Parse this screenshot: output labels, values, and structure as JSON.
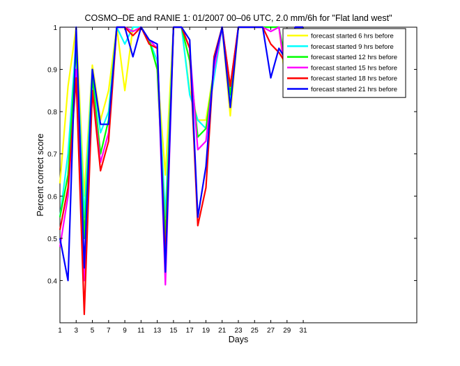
{
  "chart_data": {
    "type": "line",
    "title": "COSMO–DE and RANIE 1: 01/2007 00–06 UTC, 2.0 mm/6h for \"Flat land west\"",
    "xlabel": "Days",
    "ylabel": "Percent correct score",
    "xlim": [
      1,
      45
    ],
    "ylim": [
      0.3,
      1.0
    ],
    "xticks": [
      1,
      3,
      5,
      7,
      9,
      11,
      13,
      15,
      17,
      19,
      21,
      23,
      25,
      27,
      29,
      31
    ],
    "xtick_labels": [
      "1",
      "3",
      "5",
      "7",
      "9",
      "11",
      "13",
      "15",
      "17",
      "19",
      "21",
      "23",
      "25",
      "27",
      "29",
      "31"
    ],
    "yticks": [
      0.4,
      0.5,
      0.6,
      0.7,
      0.8,
      0.9,
      1.0
    ],
    "ytick_labels": [
      "0.4",
      "0.5",
      "0.6",
      "0.7",
      "0.8",
      "0.9",
      "1"
    ],
    "grid": false,
    "legend_position": "top-right",
    "x": [
      1,
      2,
      3,
      4,
      5,
      6,
      7,
      8,
      9,
      10,
      11,
      12,
      13,
      14,
      15,
      16,
      17,
      18,
      19,
      20,
      21,
      22,
      23,
      24,
      25,
      26,
      27,
      28,
      29,
      30,
      31
    ],
    "series": [
      {
        "name": "forecast started 6 hrs before",
        "color": "#ffff00",
        "values": [
          0.63,
          0.86,
          1.0,
          0.6,
          0.91,
          0.78,
          0.85,
          1.0,
          0.85,
          1.0,
          1.0,
          0.97,
          0.9,
          0.65,
          1.0,
          1.0,
          0.85,
          0.78,
          0.78,
          0.9,
          1.0,
          0.79,
          1.0,
          1.0,
          1.0,
          1.0,
          1.0,
          1.0,
          0.84,
          1.0,
          1.0
        ]
      },
      {
        "name": "forecast started 9 hrs before",
        "color": "#00ffff",
        "values": [
          0.55,
          0.7,
          0.97,
          0.55,
          0.9,
          0.75,
          0.8,
          1.0,
          0.96,
          1.0,
          1.0,
          0.97,
          0.92,
          0.55,
          1.0,
          1.0,
          0.84,
          0.78,
          0.76,
          0.88,
          1.0,
          0.83,
          1.0,
          1.0,
          1.0,
          1.0,
          1.0,
          1.0,
          0.88,
          1.0,
          1.0
        ]
      },
      {
        "name": "forecast started 12 hrs before",
        "color": "#00ff00",
        "values": [
          0.55,
          0.65,
          0.95,
          0.5,
          0.88,
          0.7,
          0.78,
          1.0,
          1.0,
          0.99,
          1.0,
          0.97,
          0.9,
          0.5,
          1.0,
          1.0,
          0.92,
          0.74,
          0.76,
          0.9,
          1.0,
          0.84,
          1.0,
          1.0,
          1.0,
          1.0,
          1.0,
          1.0,
          0.9,
          1.0,
          1.0
        ]
      },
      {
        "name": "forecast started 15 hrs before",
        "color": "#ff00ff",
        "values": [
          0.48,
          0.6,
          0.9,
          0.4,
          0.85,
          0.68,
          0.75,
          1.0,
          1.0,
          0.99,
          1.0,
          0.97,
          0.95,
          0.39,
          1.0,
          1.0,
          0.95,
          0.71,
          0.73,
          0.9,
          1.0,
          0.86,
          1.0,
          1.0,
          1.0,
          1.0,
          0.99,
          1.0,
          0.86,
          1.0,
          1.0
        ]
      },
      {
        "name": "forecast started 18 hrs before",
        "color": "#ff0000",
        "values": [
          0.52,
          0.62,
          0.88,
          0.32,
          0.85,
          0.66,
          0.73,
          1.0,
          1.0,
          0.98,
          1.0,
          0.96,
          0.95,
          0.45,
          1.0,
          1.0,
          0.95,
          0.53,
          0.62,
          0.93,
          1.0,
          0.86,
          1.0,
          1.0,
          1.0,
          1.0,
          0.96,
          0.94,
          0.91,
          1.0,
          1.0
        ]
      },
      {
        "name": "forecast started 21 hrs before",
        "color": "#0000ff",
        "values": [
          0.5,
          0.4,
          1.0,
          0.43,
          0.9,
          0.77,
          0.77,
          1.0,
          1.0,
          0.93,
          1.0,
          0.97,
          0.96,
          0.42,
          1.0,
          1.0,
          0.97,
          0.55,
          0.67,
          0.92,
          1.0,
          0.81,
          1.0,
          1.0,
          1.0,
          1.0,
          0.88,
          0.95,
          0.92,
          1.0,
          1.0
        ]
      }
    ]
  }
}
